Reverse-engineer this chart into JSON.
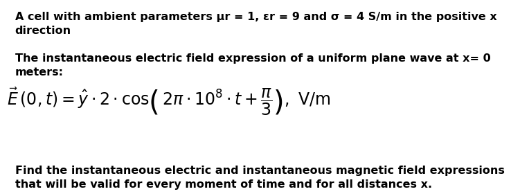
{
  "background_color": "#ffffff",
  "text_line1": "A cell with ambient parameters μr = 1, εr = 9 and σ = 4 S/m in the positive x\ndirection",
  "text_line2": "The instantaneous electric field expression of a uniform plane wave at x= 0\nmeters:",
  "text_line3": "Find the instantaneous electric and instantaneous magnetic field expressions\nthat will be valid for every moment of time and for all distances x.",
  "formula": "$\\vec{E}\\,(0,t) = \\hat{y} \\cdot 2 \\cdot \\cos\\!\\left(\\,2\\pi \\cdot 10^{8} \\cdot t + \\dfrac{\\pi}{3}\\right),\\ \\mathrm{V/m}$",
  "text_fontsize": 11.5,
  "formula_fontsize": 17,
  "text_color": "#000000",
  "fig_width": 6.58,
  "fig_height": 2.7
}
